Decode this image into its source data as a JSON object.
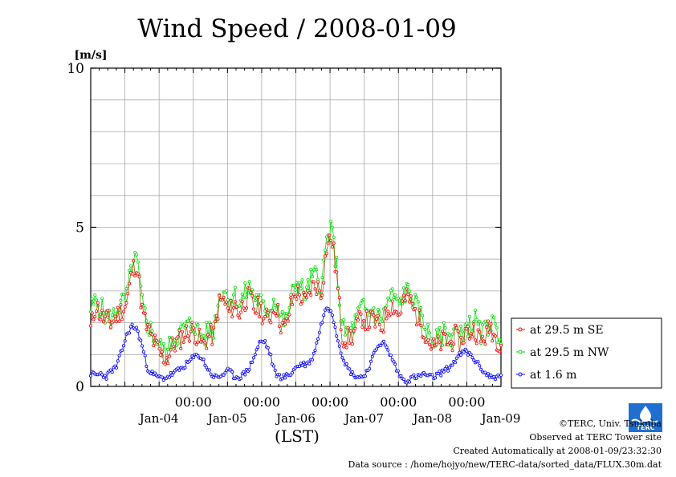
{
  "chart_data": {
    "type": "line",
    "title": "Wind Speed / 2008-01-09",
    "ylabel": "[m/s]",
    "xlabel": "(LST)",
    "ylim": [
      0,
      10
    ],
    "y_ticks": [
      0,
      5,
      10
    ],
    "x_time_range": [
      "2008-01-03 12:00",
      "2008-01-09 12:00"
    ],
    "x_tick_labels": [
      "00:00",
      "00:00",
      "00:00",
      "00:00",
      "00:00"
    ],
    "x_date_labels": [
      "Jan-04",
      "Jan-05",
      "Jan-06",
      "Jan-07",
      "Jan-08",
      "Jan-09"
    ],
    "grid": true,
    "legend_position": "right",
    "series": [
      {
        "name": "at 29.5 m SE",
        "color": "#ff0000",
        "line_color": "#a85a1a",
        "anchors": [
          1.8,
          2.6,
          2.2,
          2.1,
          2.0,
          2.2,
          2.4,
          2.6,
          3.6,
          3.9,
          2.4,
          1.8,
          1.5,
          1.2,
          0.9,
          0.9,
          1.3,
          1.4,
          1.6,
          1.7,
          1.8,
          1.5,
          1.3,
          1.6,
          1.6,
          2.6,
          2.7,
          2.3,
          2.6,
          2.3,
          2.7,
          2.8,
          2.4,
          2.5,
          2.1,
          2.2,
          2.6,
          2.0,
          1.8,
          2.5,
          3.0,
          2.8,
          2.6,
          3.1,
          3.2,
          2.9,
          4.4,
          4.7,
          3.4,
          1.6,
          1.5,
          1.6,
          1.9,
          2.2,
          2.0,
          2.1,
          1.9,
          1.9,
          2.5,
          2.6,
          2.2,
          2.7,
          2.8,
          2.4,
          2.1,
          1.8,
          1.4,
          1.2,
          1.3,
          1.5,
          1.3,
          1.6,
          1.3,
          1.7,
          1.7,
          1.8,
          1.4,
          1.6,
          1.9,
          1.5,
          1.4
        ]
      },
      {
        "name": "at 29.5 m NW",
        "color": "#00e000",
        "line_color": "#00e000",
        "anchors": [
          2.4,
          2.7,
          2.5,
          2.2,
          2.1,
          2.4,
          2.6,
          2.8,
          3.8,
          4.0,
          2.6,
          2.0,
          1.7,
          1.4,
          1.1,
          1.1,
          1.5,
          1.6,
          1.8,
          1.9,
          2.0,
          1.7,
          1.5,
          1.8,
          1.8,
          2.8,
          3.1,
          2.7,
          2.9,
          2.6,
          2.9,
          3.1,
          2.8,
          2.7,
          2.3,
          2.5,
          2.8,
          2.2,
          2.0,
          2.7,
          3.3,
          3.1,
          2.9,
          3.4,
          3.5,
          3.1,
          4.6,
          4.9,
          3.7,
          1.8,
          1.7,
          1.8,
          2.2,
          2.5,
          2.3,
          2.4,
          2.2,
          2.2,
          2.7,
          2.9,
          2.5,
          2.9,
          3.0,
          2.7,
          2.3,
          2.0,
          1.6,
          1.4,
          1.5,
          1.7,
          1.5,
          1.9,
          1.5,
          1.9,
          1.9,
          2.1,
          1.6,
          1.8,
          2.1,
          1.7,
          1.6
        ]
      },
      {
        "name": "at 1.6 m",
        "color": "#0000ff",
        "line_color": "#0000ff",
        "anchors": [
          0.4,
          0.35,
          0.4,
          0.3,
          0.5,
          0.6,
          1.1,
          1.6,
          1.9,
          1.8,
          1.3,
          0.6,
          0.4,
          0.3,
          0.25,
          0.3,
          0.4,
          0.5,
          0.6,
          0.75,
          0.9,
          1.0,
          0.8,
          0.5,
          0.3,
          0.3,
          0.4,
          0.5,
          0.3,
          0.3,
          0.4,
          0.6,
          1.0,
          1.4,
          1.4,
          1.0,
          0.4,
          0.3,
          0.3,
          0.4,
          0.6,
          0.7,
          0.7,
          0.8,
          1.3,
          2.0,
          2.5,
          2.4,
          1.6,
          1.0,
          0.6,
          0.4,
          0.3,
          0.3,
          0.5,
          0.9,
          1.3,
          1.4,
          1.1,
          0.8,
          0.4,
          0.2,
          0.2,
          0.3,
          0.3,
          0.4,
          0.3,
          0.3,
          0.4,
          0.5,
          0.6,
          0.8,
          1.0,
          1.1,
          1.0,
          0.8,
          0.6,
          0.4,
          0.3,
          0.3,
          0.3
        ]
      }
    ]
  },
  "credits": {
    "copyright": "©TERC, Univ. Tsukuba",
    "observed": "Observed at TERC Tower site",
    "created": "Created Automatically at 2008-01-09/23:32:30",
    "source": "Data source : /home/hojyo/new/TERC-data/sorted_data/FLUX.30m.dat",
    "logo_text": "TERC"
  }
}
